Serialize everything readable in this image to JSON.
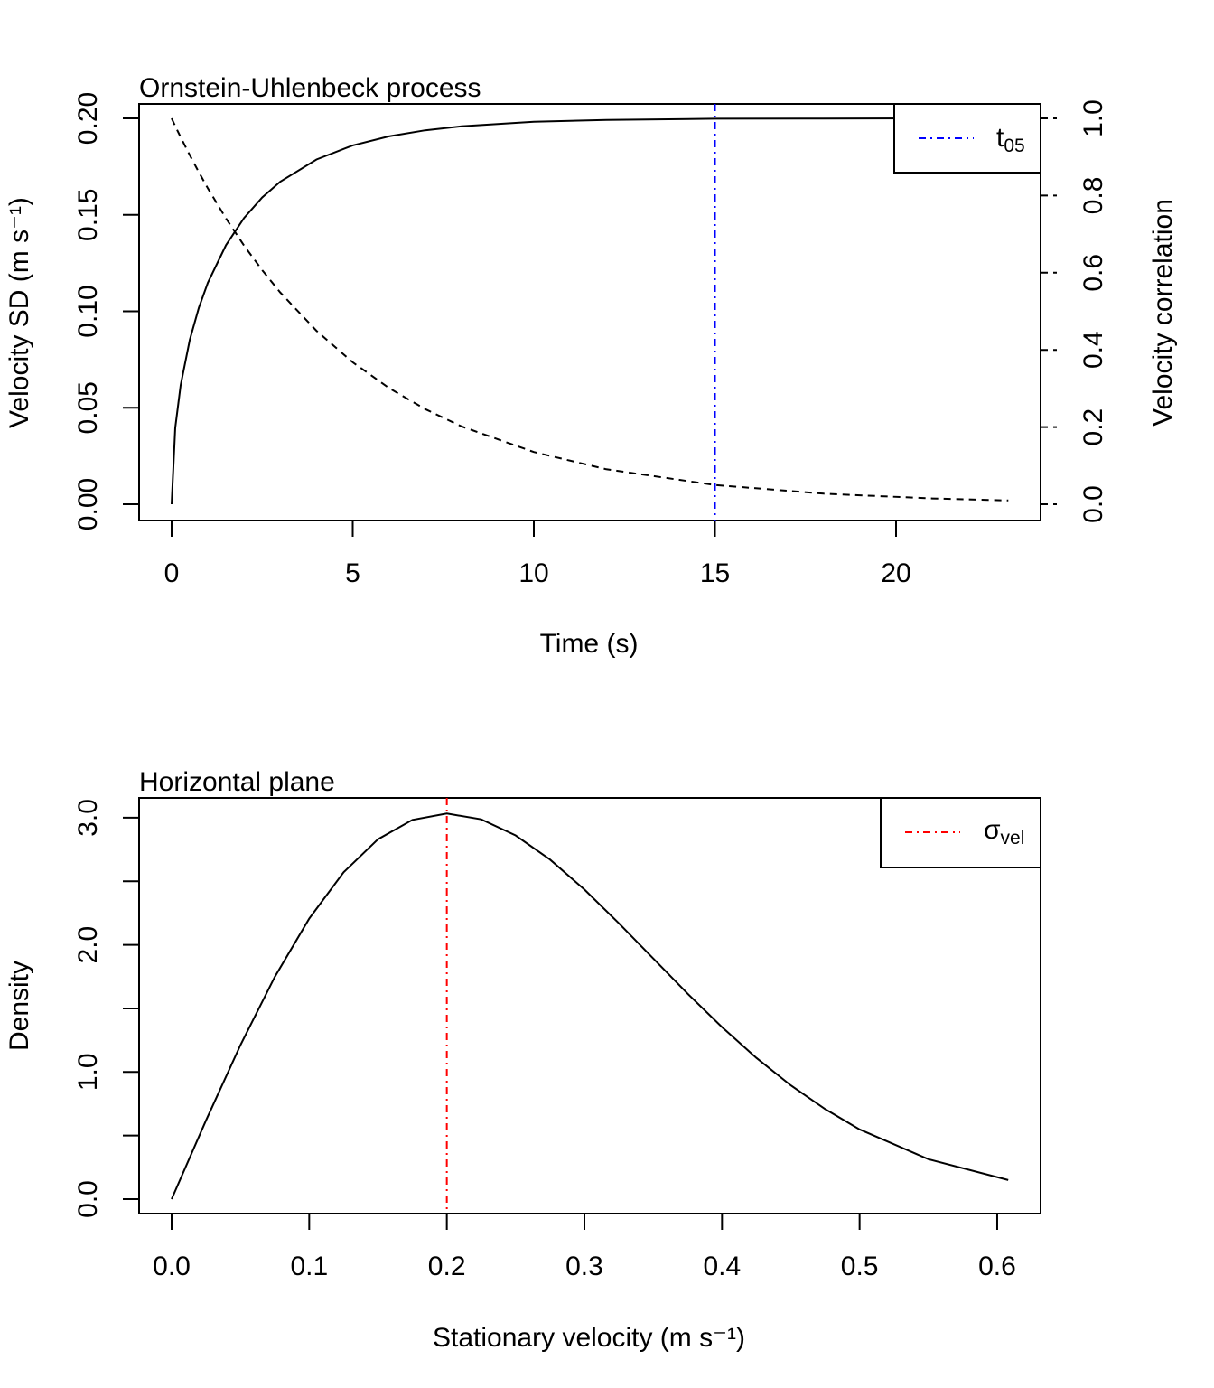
{
  "chart_data": [
    {
      "type": "line",
      "title": "Ornstein-Uhlenbeck process",
      "xlabel": "Time (s)",
      "ylabel": "Velocity SD (m s⁻¹)",
      "ylabel_right": "Velocity correlation",
      "xlim": [
        0,
        23.1
      ],
      "ylim": [
        0,
        0.2
      ],
      "ylim_right": [
        0,
        1.0
      ],
      "xticks": [
        "0",
        "5",
        "10",
        "15",
        "20"
      ],
      "xtick_values": [
        0,
        5,
        10,
        15,
        20
      ],
      "yticks": [
        "0.00",
        "0.05",
        "0.10",
        "0.15",
        "0.20"
      ],
      "ytick_values": [
        0,
        0.05,
        0.1,
        0.15,
        0.2
      ],
      "yticks_right": [
        "0.0",
        "0.2",
        "0.4",
        "0.6",
        "0.8",
        "1.0"
      ],
      "ytick_right_values": [
        0,
        0.2,
        0.4,
        0.6,
        0.8,
        1.0
      ],
      "x": [
        0,
        0.1,
        0.25,
        0.5,
        0.75,
        1,
        1.5,
        2,
        2.5,
        3,
        4,
        5,
        6,
        7,
        8,
        10,
        12,
        15,
        18,
        21,
        23.1
      ],
      "series": [
        {
          "name": "Velocity SD",
          "axis": "left",
          "style": "solid",
          "color": "#000000",
          "values": [
            0,
            0.0396,
            0.0617,
            0.0852,
            0.1018,
            0.1148,
            0.1343,
            0.1484,
            0.159,
            0.1672,
            0.1787,
            0.186,
            0.1907,
            0.1938,
            0.1959,
            0.1982,
            0.1992,
            0.1998,
            0.1999,
            0.2,
            0.2
          ]
        },
        {
          "name": "Velocity correlation",
          "axis": "right",
          "style": "dashed",
          "color": "#000000",
          "values": [
            1,
            0.9802,
            0.9512,
            0.9048,
            0.8607,
            0.8187,
            0.7408,
            0.6703,
            0.6065,
            0.5488,
            0.4493,
            0.3679,
            0.3012,
            0.2466,
            0.2019,
            0.1353,
            0.0907,
            0.0498,
            0.0273,
            0.015,
            0.0099
          ]
        }
      ],
      "vline": {
        "x": 15,
        "color": "#0000ff",
        "style": "dotdash"
      },
      "legend": {
        "label_main": "t",
        "label_sub": "05",
        "color": "#0000ff",
        "placement": "top-right"
      }
    },
    {
      "type": "line",
      "title": "Horizontal plane",
      "xlabel": "Stationary velocity (m s⁻¹)",
      "ylabel": "Density",
      "xlim": [
        0,
        0.608
      ],
      "ylim": [
        0,
        3.03
      ],
      "xticks": [
        "0.0",
        "0.1",
        "0.2",
        "0.3",
        "0.4",
        "0.5",
        "0.6"
      ],
      "xtick_values": [
        0,
        0.1,
        0.2,
        0.3,
        0.4,
        0.5,
        0.6
      ],
      "yticks": [
        "0.0",
        "1.0",
        "2.0",
        "3.0"
      ],
      "ytick_values": [
        0,
        1,
        2,
        3
      ],
      "minor_ytick_values": [
        0.5,
        1.5,
        2.5
      ],
      "x": [
        0,
        0.025,
        0.05,
        0.075,
        0.1,
        0.125,
        0.15,
        0.175,
        0.2,
        0.225,
        0.25,
        0.275,
        0.3,
        0.325,
        0.35,
        0.375,
        0.4,
        0.425,
        0.45,
        0.475,
        0.5,
        0.55,
        0.608
      ],
      "series": [
        {
          "name": "Density",
          "style": "solid",
          "color": "#000000",
          "values": [
            0,
            0.62,
            1.2115,
            1.7477,
            2.206,
            2.571,
            2.831,
            2.983,
            3.033,
            2.987,
            2.861,
            2.671,
            2.435,
            2.17,
            1.893,
            1.616,
            1.353,
            1.111,
            0.895,
            0.708,
            0.549,
            0.314,
            0.15
          ]
        }
      ],
      "vline": {
        "x": 0.2,
        "color": "#ff0000",
        "style": "dotdash"
      },
      "legend": {
        "label_main": "σ",
        "label_sub": "vel",
        "color": "#ff0000",
        "placement": "top-right"
      }
    }
  ]
}
